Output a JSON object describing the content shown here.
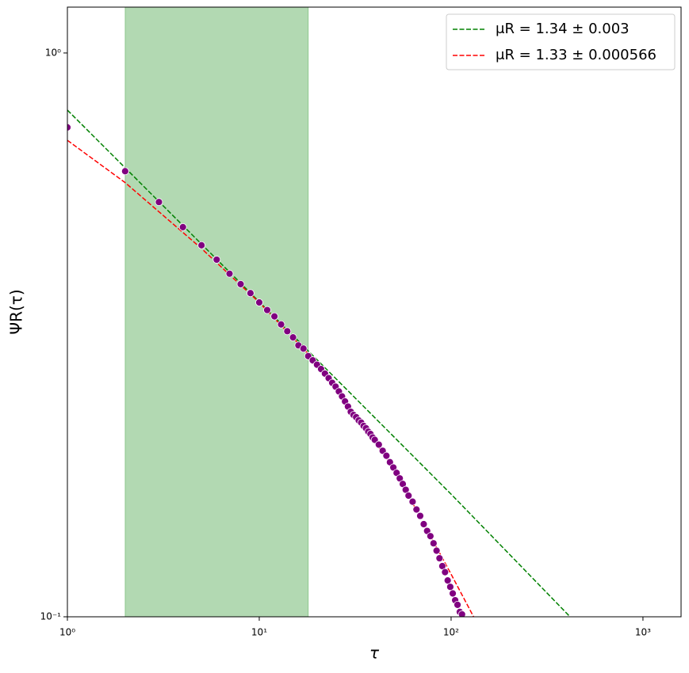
{
  "chart_data": {
    "type": "scatter",
    "xlabel": "τ",
    "ylabel": "ΨR(τ)",
    "log_x": true,
    "log_y": true,
    "xlim": [
      1,
      1580
    ],
    "ylim": [
      0.1,
      1.206
    ],
    "xticks": [
      {
        "value": 1,
        "label": "10⁰"
      },
      {
        "value": 10,
        "label": "10¹"
      },
      {
        "value": 100,
        "label": "10²"
      },
      {
        "value": 1000,
        "label": "10³"
      }
    ],
    "yticks": [
      {
        "value": 0.1,
        "label": "10⁻¹"
      },
      {
        "value": 1,
        "label": "10⁰"
      }
    ],
    "span": [
      2,
      18
    ],
    "span_color": "green",
    "legend": "upper right",
    "points": {
      "color": "purple",
      "x": [
        1,
        2,
        3,
        4,
        5,
        6,
        7,
        8,
        9,
        10,
        11,
        12,
        13,
        14,
        15,
        16,
        17,
        18,
        19,
        20,
        21,
        22,
        23,
        24,
        25,
        26,
        27,
        28,
        29,
        30,
        31,
        32,
        33,
        34,
        35,
        36,
        37,
        38,
        39,
        40,
        42,
        44,
        46,
        48,
        50,
        52,
        54,
        56,
        58,
        60,
        63,
        66,
        69,
        72,
        75,
        78,
        81,
        84,
        87,
        90,
        93,
        96,
        99,
        102,
        105,
        108,
        111,
        114
      ],
      "y": [
        0.738,
        0.617,
        0.544,
        0.491,
        0.456,
        0.43,
        0.406,
        0.389,
        0.375,
        0.361,
        0.35,
        0.341,
        0.33,
        0.321,
        0.313,
        0.303,
        0.299,
        0.29,
        0.285,
        0.28,
        0.275,
        0.27,
        0.265,
        0.26,
        0.256,
        0.251,
        0.246,
        0.241,
        0.236,
        0.231,
        0.228,
        0.226,
        0.223,
        0.221,
        0.218,
        0.216,
        0.213,
        0.211,
        0.208,
        0.206,
        0.202,
        0.197,
        0.193,
        0.188,
        0.184,
        0.18,
        0.176,
        0.172,
        0.168,
        0.164,
        0.16,
        0.155,
        0.151,
        0.146,
        0.142,
        0.139,
        0.135,
        0.131,
        0.127,
        0.123,
        0.12,
        0.116,
        0.113,
        0.11,
        0.107,
        0.105,
        0.102,
        0.101
      ]
    },
    "series": [
      {
        "name": "μR = 1.34 ± 0.003",
        "color": "green",
        "x": [
          1,
          10,
          100,
          417
        ],
        "values": [
          0.792,
          0.362,
          0.165,
          0.1
        ]
      },
      {
        "name": "μR = 1.33 ± 0.000566",
        "color": "red",
        "x": [
          1,
          2,
          5,
          10,
          20,
          50,
          100,
          131
        ],
        "values": [
          0.7,
          0.589,
          0.45,
          0.361,
          0.282,
          0.184,
          0.119,
          0.1
        ]
      }
    ]
  }
}
